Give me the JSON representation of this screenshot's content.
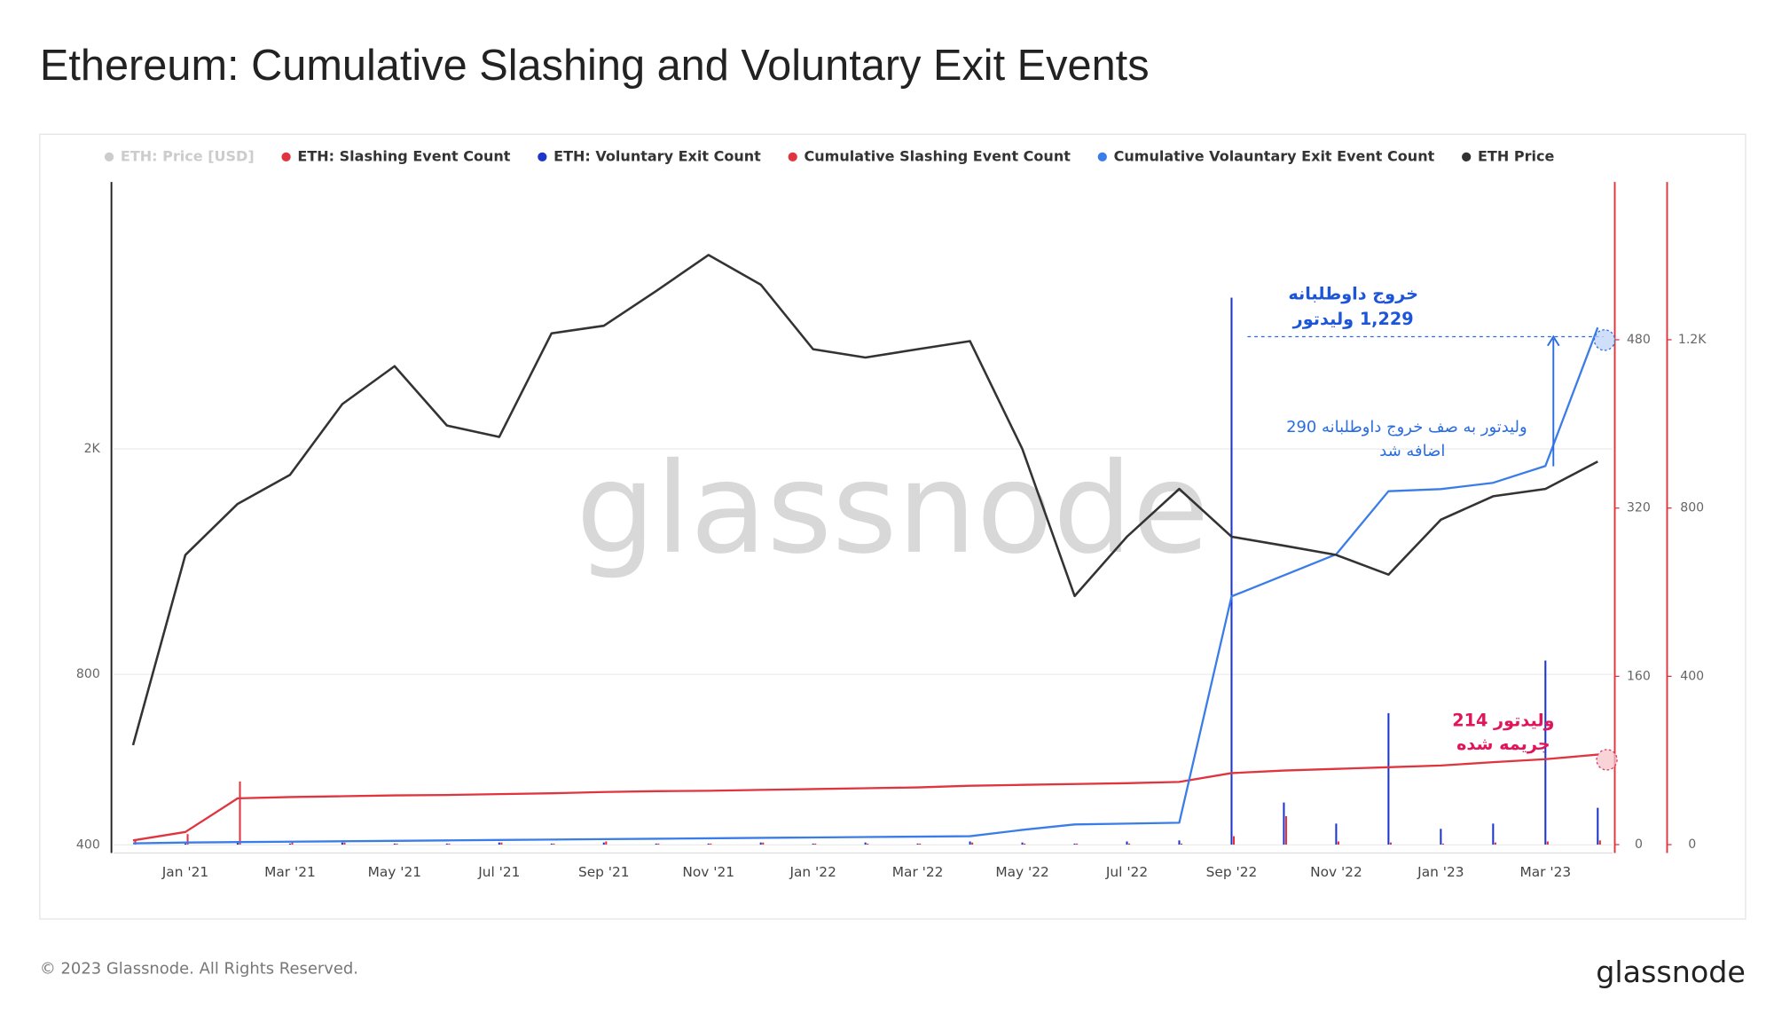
{
  "chart_data": {
    "type": "multi",
    "title": "Ethereum: Cumulative Slashing and Voluntary Exit Events",
    "footer": "© 2023 Glassnode. All Rights Reserved.",
    "logo": "glassnode",
    "watermark": "glassnode",
    "legend_extra": {
      "name": "ETH: Price [USD]",
      "color": "#cccccc"
    },
    "categories": [
      null,
      "Jan '21",
      null,
      "Mar '21",
      null,
      "May '21",
      null,
      "Jul '21",
      null,
      "Sep '21",
      null,
      "Nov '21",
      null,
      "Jan '22",
      null,
      "Mar '22",
      null,
      "May '22",
      null,
      "Jul '22",
      null,
      "Sep '22",
      null,
      "Nov '22",
      null,
      "Jan '23",
      null,
      "Mar '23",
      null
    ],
    "series": [
      {
        "name": "ETH: Slashing Event Count",
        "color": "#e0343e",
        "kind": "bar",
        "axis": "y2",
        "values": [
          5,
          10,
          60,
          3,
          2,
          1,
          1,
          2,
          1,
          3,
          1,
          1,
          2,
          1,
          1,
          1,
          2,
          1,
          1,
          1,
          1,
          8,
          27,
          3,
          2,
          1,
          2,
          3,
          4
        ]
      },
      {
        "name": "ETH: Voluntary Exit Count",
        "color": "#1d36c9",
        "kind": "bar",
        "axis": "y2",
        "values": [
          0,
          1,
          2,
          1,
          2,
          1,
          1,
          2,
          1,
          2,
          1,
          1,
          2,
          1,
          2,
          1,
          3,
          2,
          1,
          3,
          4,
          520,
          40,
          20,
          125,
          15,
          20,
          175,
          35
        ]
      },
      {
        "name": "Cumulative Slashing Event Count",
        "color": "#e0343e",
        "kind": "line",
        "axis": "y3",
        "values": [
          10,
          30,
          110,
          113,
          115,
          117,
          118,
          120,
          122,
          125,
          127,
          128,
          130,
          132,
          134,
          136,
          140,
          142,
          144,
          146,
          149,
          170,
          176,
          180,
          184,
          188,
          196,
          203,
          214
        ]
      },
      {
        "name": "Cumulative Volauntary Exit Event Count",
        "color": "#3b7de8",
        "kind": "line",
        "axis": "y3",
        "values": [
          3,
          5,
          6,
          7,
          8,
          9,
          10,
          11,
          12,
          13,
          14,
          15,
          16,
          17,
          18,
          19,
          20,
          35,
          48,
          50,
          52,
          590,
          640,
          690,
          840,
          845,
          860,
          900,
          1229
        ]
      },
      {
        "name": "ETH Price",
        "color": "#333333",
        "kind": "line",
        "axis": "y",
        "values": [
          600,
          1300,
          1600,
          1800,
          2400,
          2800,
          2200,
          2100,
          3200,
          3300,
          3800,
          4400,
          3900,
          3000,
          2900,
          3000,
          3100,
          2000,
          1100,
          1400,
          1700,
          1400,
          1350,
          1300,
          1200,
          1500,
          1650,
          1700,
          1900
        ]
      }
    ],
    "ylim": [
      387,
      5920
    ],
    "log_y": true,
    "yticks": [
      400,
      800,
      {
        "value": 2000,
        "label": "2K"
      }
    ],
    "y2lim": [
      -8,
      630
    ],
    "y2ticks": [
      0,
      160,
      320,
      480
    ],
    "y3lim": [
      -20,
      1575
    ],
    "y3ticks": [
      0,
      400,
      800,
      {
        "value": 1200,
        "label": "1.2K"
      }
    ],
    "grid": true,
    "annotations": {
      "exit_title": "خروج داوطلبانه",
      "exit_count": "1,229  ولیدتور",
      "queue_line1": "290 ولیدتور به صف خروج داوطلبانه",
      "queue_line2": "اضافه شد",
      "slash_count": "214 ولیدتور",
      "slash_title": "جریمه شده"
    }
  }
}
